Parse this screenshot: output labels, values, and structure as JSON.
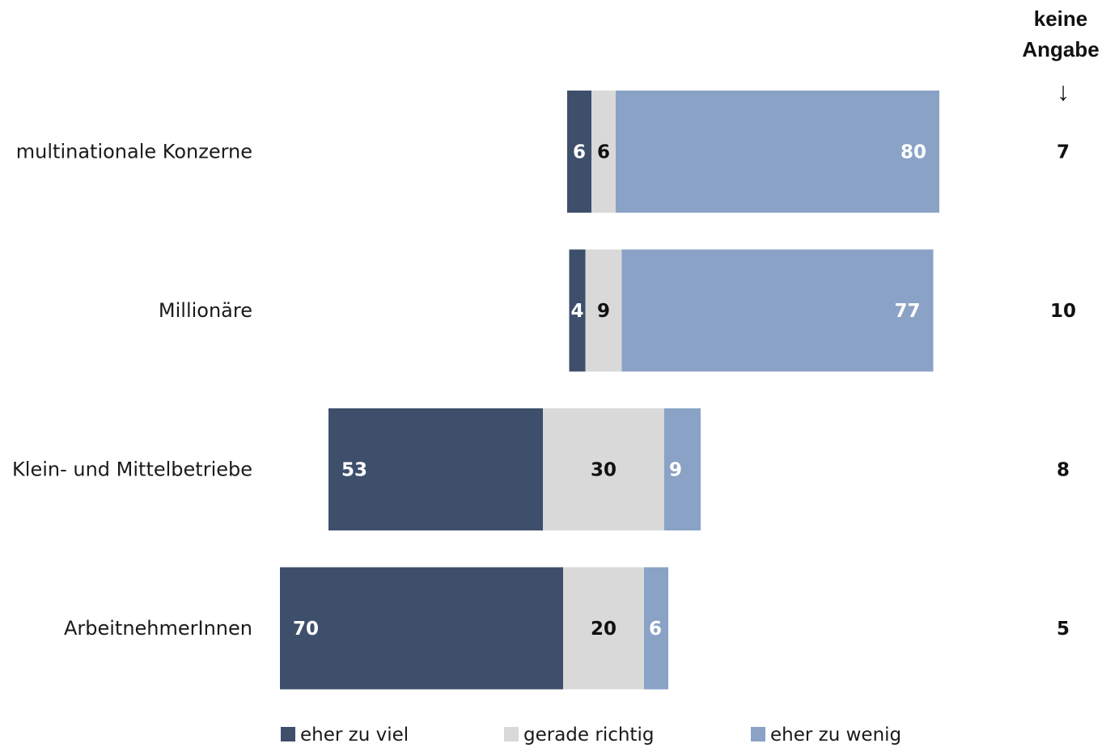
{
  "chart_data": {
    "type": "bar",
    "orientation": "horizontal",
    "stacked": true,
    "diverging": true,
    "categories": [
      "multinationale Konzerne",
      "Millionäre",
      "Klein- und Mittelbetriebe",
      "ArbeitnehmerInnen"
    ],
    "series": [
      {
        "name": "eher zu viel",
        "color": "#3e4f6b",
        "label_color": "#ffffff",
        "values": [
          6,
          4,
          53,
          70
        ]
      },
      {
        "name": "gerade richtig",
        "color": "#d9d9d9",
        "label_color": "#111111",
        "values": [
          6,
          9,
          30,
          20
        ]
      },
      {
        "name": "eher zu wenig",
        "color": "#8aa2c6",
        "label_color": "#ffffff",
        "values": [
          80,
          77,
          9,
          6
        ]
      }
    ],
    "keine_angabe": {
      "header_lines": [
        "keine",
        "Angabe"
      ],
      "arrow": "↓",
      "values": [
        7,
        10,
        8,
        5
      ]
    },
    "legend_position": "bottom",
    "grid": false
  }
}
